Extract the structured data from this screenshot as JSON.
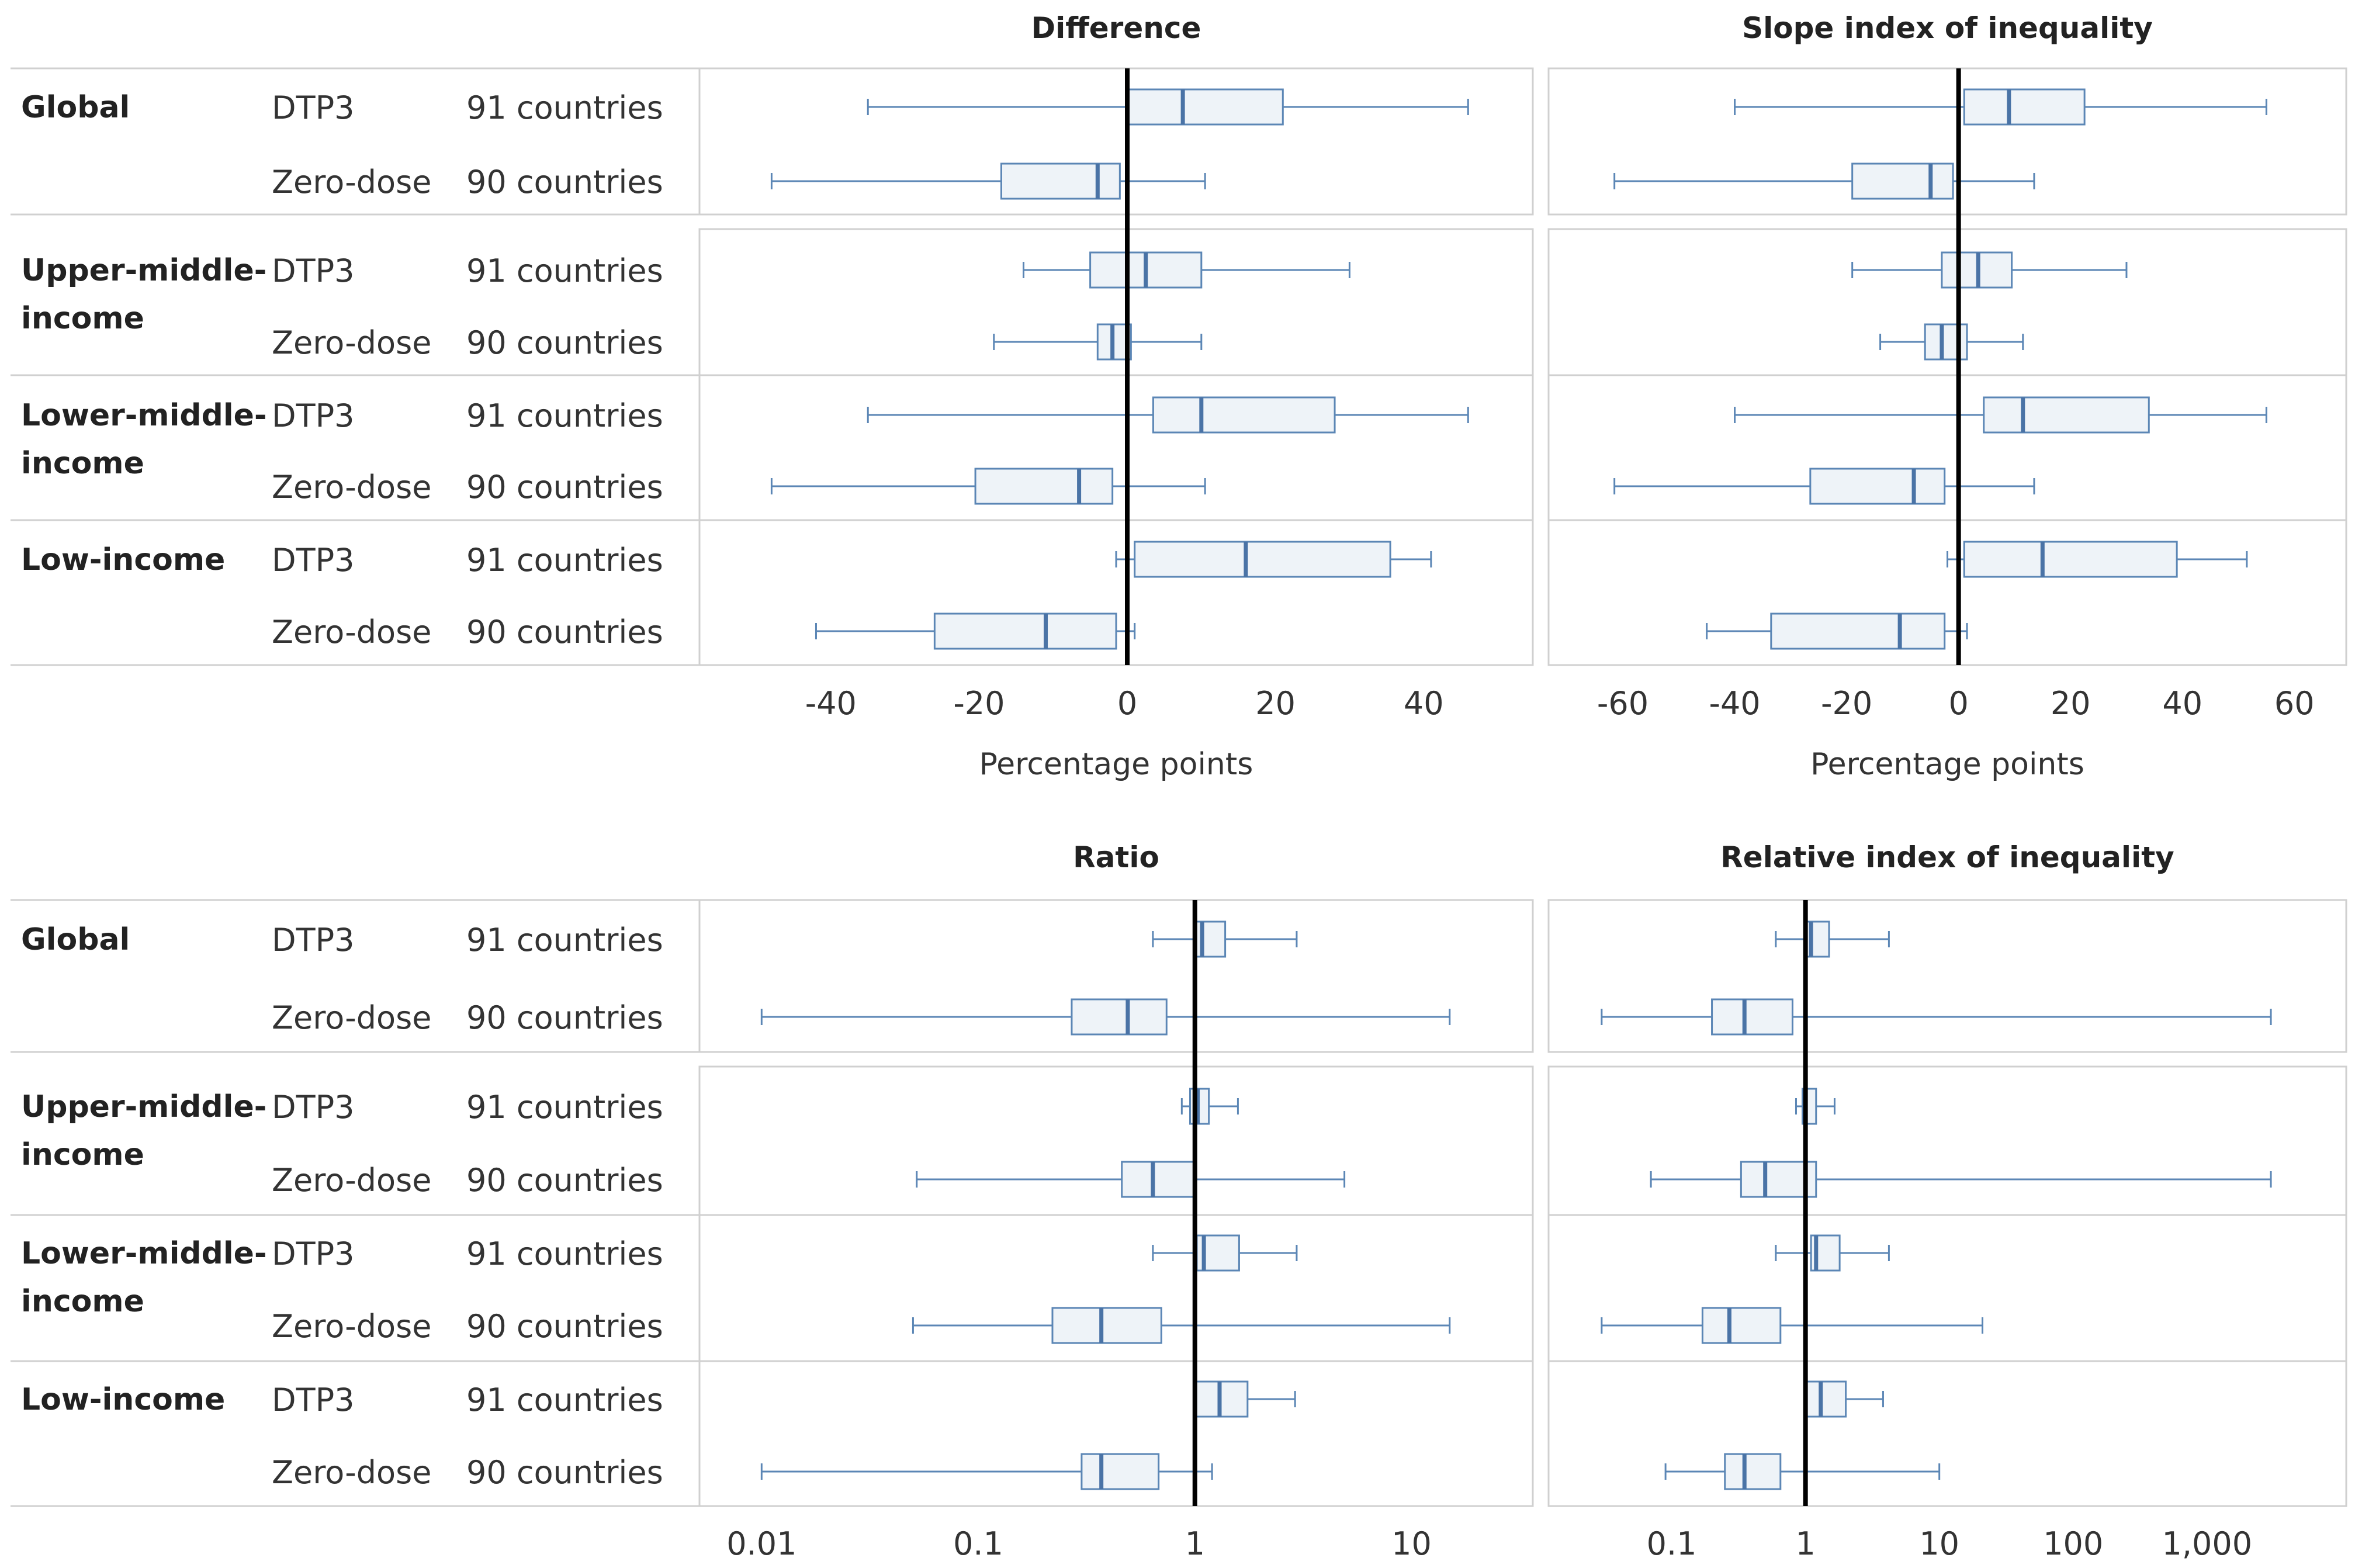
{
  "chart_data": {
    "type": "boxplot",
    "colors": {
      "box_fill": "#eef3f8",
      "box_stroke": "#5b86b5",
      "median": "#4a73a6",
      "reference_line": "#000000",
      "reference_line_muted": "#bbbbbb",
      "text": "#333333"
    },
    "groups": [
      "Global",
      "Upper-middle-income",
      "Lower-middle-income",
      "Low-income"
    ],
    "group_labels": [
      [
        "Global"
      ],
      [
        "Upper-middle-",
        "income"
      ],
      [
        "Lower-middle-",
        "income"
      ],
      [
        "Low-income"
      ]
    ],
    "indicators": [
      "DTP3",
      "Zero-dose"
    ],
    "country_counts": [
      "91 countries",
      "90 countries"
    ],
    "sections": [
      {
        "id": "absolute",
        "panels": [
          {
            "title": "Difference",
            "scale": "linear",
            "xlim": [
              -53,
              50
            ],
            "ticks": [
              -40,
              -20,
              0,
              20,
              40
            ],
            "tick_labels": [
              "-40",
              "-20",
              "0",
              "20",
              "40"
            ],
            "xlabel": "Percentage points",
            "reference": 0,
            "reference_style": "dark",
            "boxes": [
              {
                "group": "Global",
                "indicator": "DTP3",
                "min": -35,
                "q1": 0,
                "median": 7.5,
                "q3": 21,
                "max": 46
              },
              {
                "group": "Global",
                "indicator": "Zero-dose",
                "min": -48,
                "q1": -17,
                "median": -4,
                "q3": -1,
                "max": 10.5
              },
              {
                "group": "Upper-middle-income",
                "indicator": "DTP3",
                "min": -14,
                "q1": -5,
                "median": 2.5,
                "q3": 10,
                "max": 30
              },
              {
                "group": "Upper-middle-income",
                "indicator": "Zero-dose",
                "min": -18,
                "q1": -4,
                "median": -2,
                "q3": 0.5,
                "max": 10
              },
              {
                "group": "Lower-middle-income",
                "indicator": "DTP3",
                "min": -35,
                "q1": 3.5,
                "median": 10,
                "q3": 28,
                "max": 46
              },
              {
                "group": "Lower-middle-income",
                "indicator": "Zero-dose",
                "min": -48,
                "q1": -20.5,
                "median": -6.5,
                "q3": -2,
                "max": 10.5
              },
              {
                "group": "Low-income",
                "indicator": "DTP3",
                "min": -1.5,
                "q1": 1,
                "median": 16,
                "q3": 35.5,
                "max": 41
              },
              {
                "group": "Low-income",
                "indicator": "Zero-dose",
                "min": -42,
                "q1": -26,
                "median": -11,
                "q3": -1.5,
                "max": 1
              }
            ]
          },
          {
            "title": "Slope index of inequality",
            "scale": "linear",
            "xlim": [
              -67,
              63
            ],
            "ticks": [
              -60,
              -40,
              -20,
              0,
              20,
              40,
              60
            ],
            "tick_labels": [
              "-60",
              "-40",
              "-20",
              "0",
              "20",
              "40",
              "60"
            ],
            "xlabel": "Percentage points",
            "reference": 0,
            "reference_style": "dark",
            "boxes": [
              {
                "group": "Global",
                "indicator": "DTP3",
                "min": -40,
                "q1": 1,
                "median": 9,
                "q3": 22.5,
                "max": 55
              },
              {
                "group": "Global",
                "indicator": "Zero-dose",
                "min": -61.5,
                "q1": -19,
                "median": -5,
                "q3": -1,
                "max": 13.5
              },
              {
                "group": "Upper-middle-income",
                "indicator": "DTP3",
                "min": -19,
                "q1": -3,
                "median": 3.5,
                "q3": 9.5,
                "max": 30
              },
              {
                "group": "Upper-middle-income",
                "indicator": "Zero-dose",
                "min": -14,
                "q1": -6,
                "median": -3,
                "q3": 1.5,
                "max": 11.5
              },
              {
                "group": "Lower-middle-income",
                "indicator": "DTP3",
                "min": -40,
                "q1": 4.5,
                "median": 11.5,
                "q3": 34,
                "max": 55
              },
              {
                "group": "Lower-middle-income",
                "indicator": "Zero-dose",
                "min": -61.5,
                "q1": -26.5,
                "median": -8,
                "q3": -2.5,
                "max": 13.5
              },
              {
                "group": "Low-income",
                "indicator": "DTP3",
                "min": -2,
                "q1": 1,
                "median": 15,
                "q3": 39,
                "max": 51.5
              },
              {
                "group": "Low-income",
                "indicator": "Zero-dose",
                "min": -45,
                "q1": -33.5,
                "median": -10.5,
                "q3": -2.5,
                "max": 1.5
              }
            ]
          }
        ]
      },
      {
        "id": "relative",
        "panels": [
          {
            "title": "Ratio",
            "scale": "log",
            "xlim": [
              0.0075,
              25
            ],
            "ticks": [
              0.01,
              0.1,
              1,
              10
            ],
            "tick_labels": [
              "0.01",
              "0.1",
              "1",
              "10"
            ],
            "xlabel": "",
            "reference": 1,
            "reference_style": "dark",
            "boxes": [
              {
                "group": "Global",
                "indicator": "DTP3",
                "min": 0.64,
                "q1": 1.0,
                "median": 1.08,
                "q3": 1.38,
                "max": 2.95
              },
              {
                "group": "Global",
                "indicator": "Zero-dose",
                "min": 0.01,
                "q1": 0.27,
                "median": 0.49,
                "q3": 0.74,
                "max": 15
              },
              {
                "group": "Upper-middle-income",
                "indicator": "DTP3",
                "min": 0.87,
                "q1": 0.95,
                "median": 1.03,
                "q3": 1.16,
                "max": 1.58
              },
              {
                "group": "Upper-middle-income",
                "indicator": "Zero-dose",
                "min": 0.052,
                "q1": 0.46,
                "median": 0.64,
                "q3": 0.99,
                "max": 4.9
              },
              {
                "group": "Lower-middle-income",
                "indicator": "DTP3",
                "min": 0.64,
                "q1": 1.02,
                "median": 1.1,
                "q3": 1.6,
                "max": 2.95
              },
              {
                "group": "Lower-middle-income",
                "indicator": "Zero-dose",
                "min": 0.05,
                "q1": 0.22,
                "median": 0.37,
                "q3": 0.7,
                "max": 15
              },
              {
                "group": "Low-income",
                "indicator": "DTP3",
                "min": 1.0,
                "q1": 1.0,
                "median": 1.3,
                "q3": 1.75,
                "max": 2.9
              },
              {
                "group": "Low-income",
                "indicator": "Zero-dose",
                "min": 0.01,
                "q1": 0.3,
                "median": 0.37,
                "q3": 0.68,
                "max": 1.2
              }
            ]
          },
          {
            "title": "Relative index of inequality",
            "scale": "log",
            "xlim": [
              0.022,
              6000
            ],
            "ticks": [
              0.1,
              1,
              10,
              100,
              1000
            ],
            "tick_labels": [
              "0.1",
              "1",
              "10",
              "100",
              "1,000"
            ],
            "xlabel": "",
            "reference": 1,
            "reference_style": "dark",
            "boxes": [
              {
                "group": "Global",
                "indicator": "DTP3",
                "min": 0.6,
                "q1": 1.0,
                "median": 1.1,
                "q3": 1.5,
                "max": 4.2
              },
              {
                "group": "Global",
                "indicator": "Zero-dose",
                "min": 0.03,
                "q1": 0.2,
                "median": 0.35,
                "q3": 0.8,
                "max": 3000
              },
              {
                "group": "Upper-middle-income",
                "indicator": "DTP3",
                "min": 0.85,
                "q1": 0.95,
                "median": 1.0,
                "q3": 1.2,
                "max": 1.65
              },
              {
                "group": "Upper-middle-income",
                "indicator": "Zero-dose",
                "min": 0.07,
                "q1": 0.33,
                "median": 0.5,
                "q3": 1.2,
                "max": 3000
              },
              {
                "group": "Lower-middle-income",
                "indicator": "DTP3",
                "min": 0.6,
                "q1": 1.1,
                "median": 1.2,
                "q3": 1.8,
                "max": 4.2
              },
              {
                "group": "Lower-middle-income",
                "indicator": "Zero-dose",
                "min": 0.03,
                "q1": 0.17,
                "median": 0.27,
                "q3": 0.65,
                "max": 21
              },
              {
                "group": "Low-income",
                "indicator": "DTP3",
                "min": 1.0,
                "q1": 1.0,
                "median": 1.3,
                "q3": 2.0,
                "max": 3.8
              },
              {
                "group": "Low-income",
                "indicator": "Zero-dose",
                "min": 0.09,
                "q1": 0.25,
                "median": 0.35,
                "q3": 0.65,
                "max": 10
              }
            ]
          }
        ]
      }
    ]
  }
}
